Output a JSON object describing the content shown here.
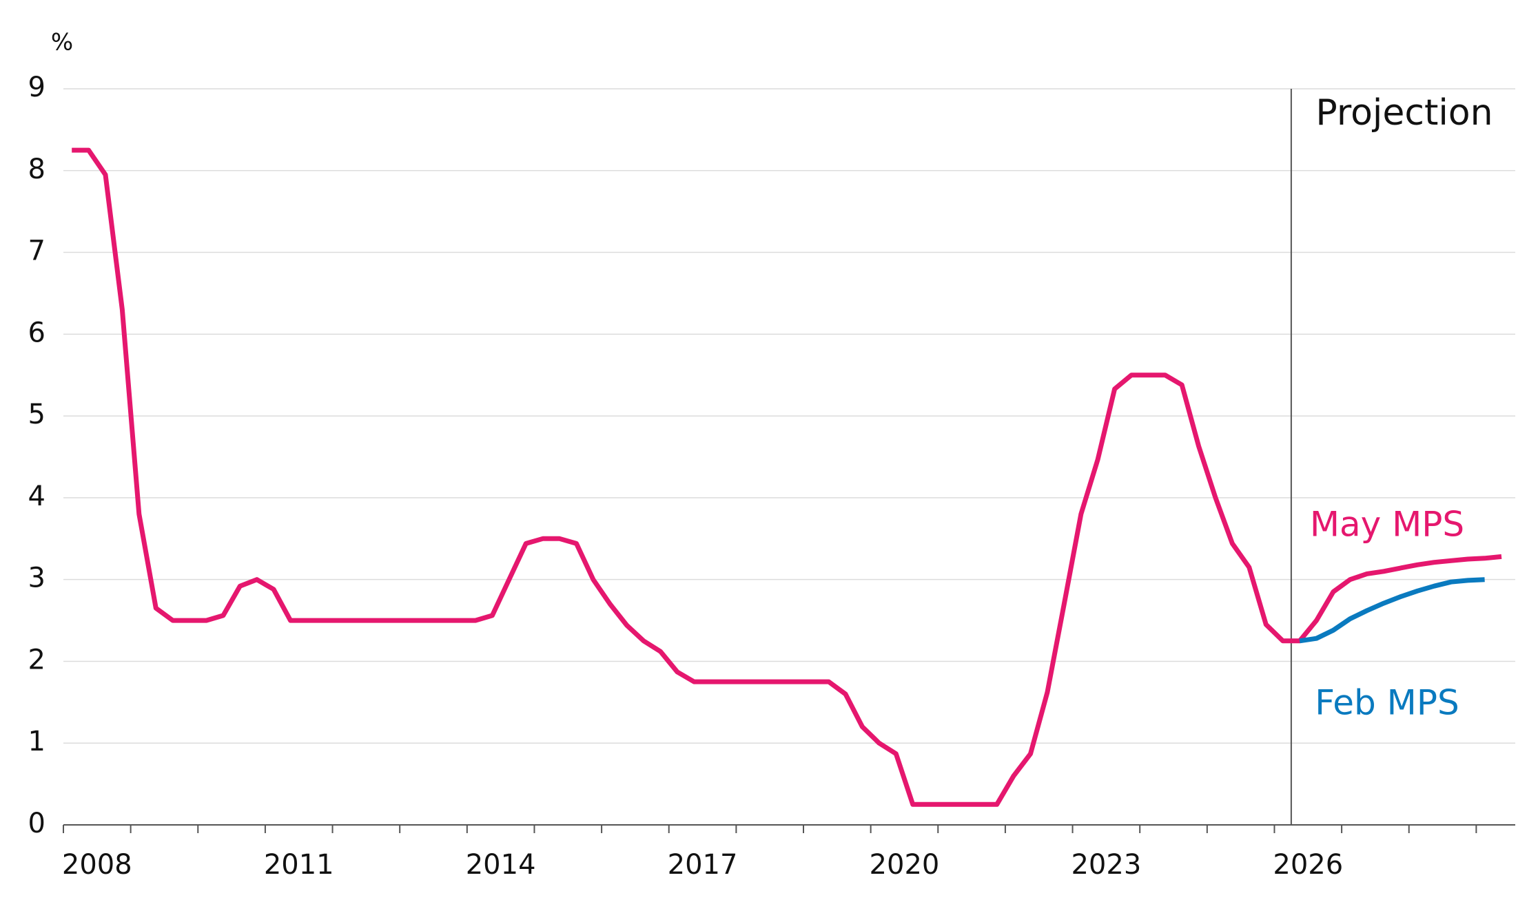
{
  "chart_data": {
    "type": "line",
    "y_unit": "%",
    "annotation": "Projection",
    "vline": 2026.25,
    "xlim": [
      2008,
      2029.58
    ],
    "xticks": [
      2008,
      2009,
      2010,
      2011,
      2012,
      2013,
      2014,
      2015,
      2016,
      2017,
      2018,
      2019,
      2020,
      2021,
      2022,
      2023,
      2024,
      2025,
      2026,
      2027,
      2028,
      2029
    ],
    "xtick_labels": [
      2008,
      2011,
      2014,
      2017,
      2020,
      2023,
      2026
    ],
    "ylim": [
      0,
      9
    ],
    "yticks": [
      0,
      1,
      2,
      3,
      4,
      5,
      6,
      7,
      8,
      9
    ],
    "grid": true,
    "series": [
      {
        "name": "May MPS",
        "color": "#e5176e",
        "x": [
          2008.125,
          2008.375,
          2008.625,
          2008.875,
          2009.125,
          2009.375,
          2009.625,
          2009.875,
          2010.125,
          2010.375,
          2010.625,
          2010.875,
          2011.125,
          2011.375,
          2011.625,
          2011.875,
          2012.125,
          2012.375,
          2012.625,
          2012.875,
          2013.125,
          2013.375,
          2013.625,
          2013.875,
          2014.125,
          2014.375,
          2014.625,
          2014.875,
          2015.125,
          2015.375,
          2015.625,
          2015.875,
          2016.125,
          2016.375,
          2016.625,
          2016.875,
          2017.125,
          2017.375,
          2017.625,
          2017.875,
          2018.125,
          2018.375,
          2018.625,
          2018.875,
          2019.125,
          2019.375,
          2019.625,
          2019.875,
          2020.125,
          2020.375,
          2020.625,
          2020.875,
          2021.125,
          2021.375,
          2021.625,
          2021.875,
          2022.125,
          2022.375,
          2022.625,
          2022.875,
          2023.125,
          2023.375,
          2023.625,
          2023.875,
          2024.125,
          2024.375,
          2024.625,
          2024.875,
          2025.125,
          2025.375,
          2025.625,
          2025.875,
          2026.125,
          2026.375,
          2026.625,
          2026.875,
          2027.125,
          2027.375,
          2027.625,
          2027.875,
          2028.125,
          2028.375,
          2028.625,
          2028.875,
          2029.125,
          2029.375
        ],
        "values": [
          8.25,
          8.25,
          7.95,
          6.3,
          3.8,
          2.65,
          2.5,
          2.5,
          2.5,
          2.56,
          2.92,
          3.0,
          2.88,
          2.5,
          2.5,
          2.5,
          2.5,
          2.5,
          2.5,
          2.5,
          2.5,
          2.5,
          2.5,
          2.5,
          2.5,
          2.56,
          3.0,
          3.44,
          3.5,
          3.5,
          3.44,
          3.0,
          2.7,
          2.44,
          2.25,
          2.12,
          1.87,
          1.75,
          1.75,
          1.75,
          1.75,
          1.75,
          1.75,
          1.75,
          1.75,
          1.75,
          1.6,
          1.2,
          1.0,
          0.87,
          0.25,
          0.25,
          0.25,
          0.25,
          0.25,
          0.25,
          0.6,
          0.87,
          1.62,
          2.7,
          3.8,
          4.47,
          5.33,
          5.5,
          5.5,
          5.5,
          5.38,
          4.63,
          4.0,
          3.44,
          3.15,
          2.45,
          2.25,
          2.25,
          2.5,
          2.85,
          3.0,
          3.07,
          3.1,
          3.14,
          3.18,
          3.21,
          3.23,
          3.25,
          3.26,
          3.28
        ]
      },
      {
        "name": "Feb MPS",
        "color": "#0a7abf",
        "x": [
          2026.375,
          2026.625,
          2026.875,
          2027.125,
          2027.375,
          2027.625,
          2027.875,
          2028.125,
          2028.375,
          2028.625,
          2028.875,
          2029.125
        ],
        "values": [
          2.25,
          2.28,
          2.38,
          2.52,
          2.62,
          2.71,
          2.79,
          2.86,
          2.92,
          2.97,
          2.99,
          3.0
        ]
      }
    ]
  }
}
